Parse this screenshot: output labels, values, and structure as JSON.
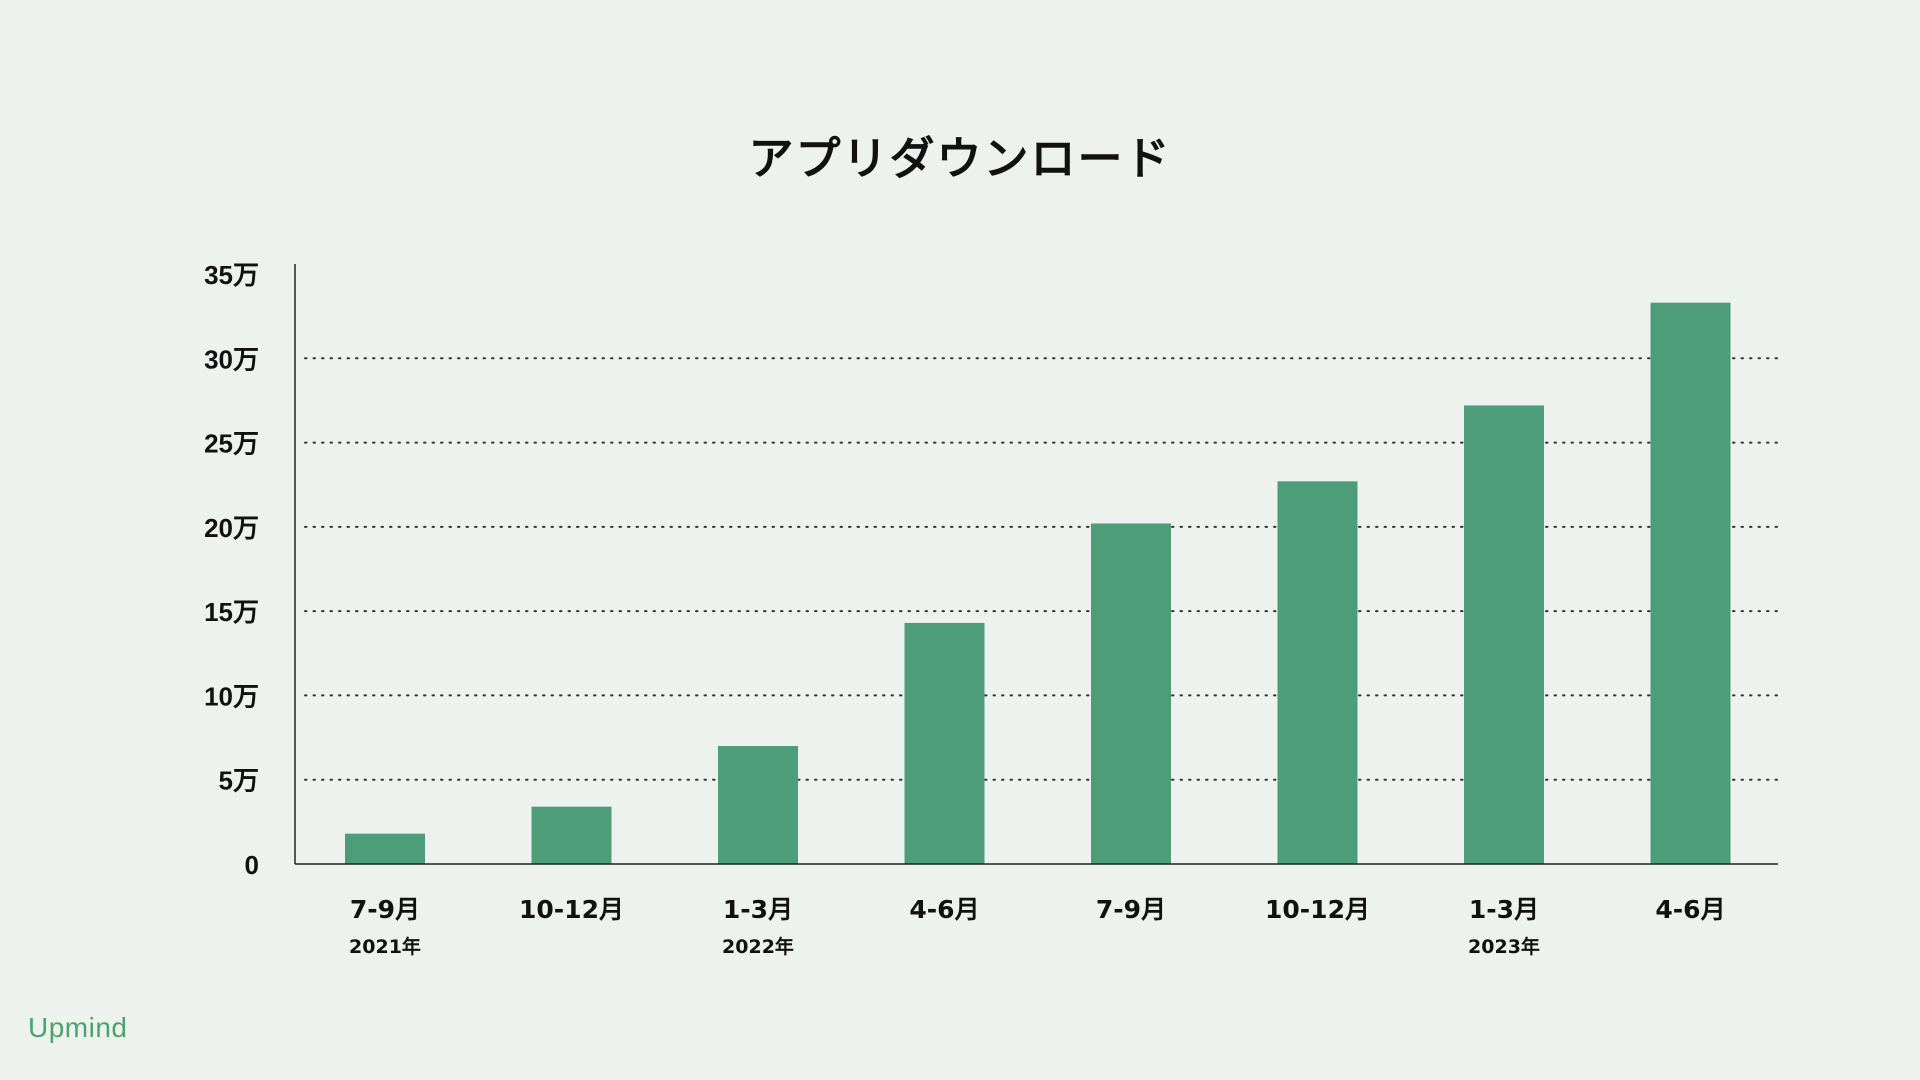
{
  "title": "アプリダウンロード",
  "brand": "Upmind",
  "colors": {
    "bar": "#4d9c7a",
    "axis": "#222222",
    "grid": "#333333",
    "brand": "#4aa36b"
  },
  "chart_data": {
    "type": "bar",
    "title": "アプリダウンロード",
    "xlabel": "",
    "ylabel": "",
    "ylim": [
      0,
      35
    ],
    "y_unit": "万",
    "yticks": [
      0,
      5,
      10,
      15,
      20,
      25,
      30,
      35
    ],
    "ytick_labels": [
      "0",
      "5万",
      "10万",
      "15万",
      "20万",
      "25万",
      "30万",
      "35万"
    ],
    "grid": true,
    "grid_style": "dotted",
    "categories": [
      "7-9月",
      "10-12月",
      "1-3月",
      "4-6月",
      "7-9月",
      "10-12月",
      "1-3月",
      "4-6月"
    ],
    "year_labels": [
      "2021年",
      "",
      "2022年",
      "",
      "",
      "",
      "2023年",
      ""
    ],
    "values": [
      1.8,
      3.4,
      7.0,
      14.3,
      20.2,
      22.7,
      27.2,
      33.3
    ]
  }
}
